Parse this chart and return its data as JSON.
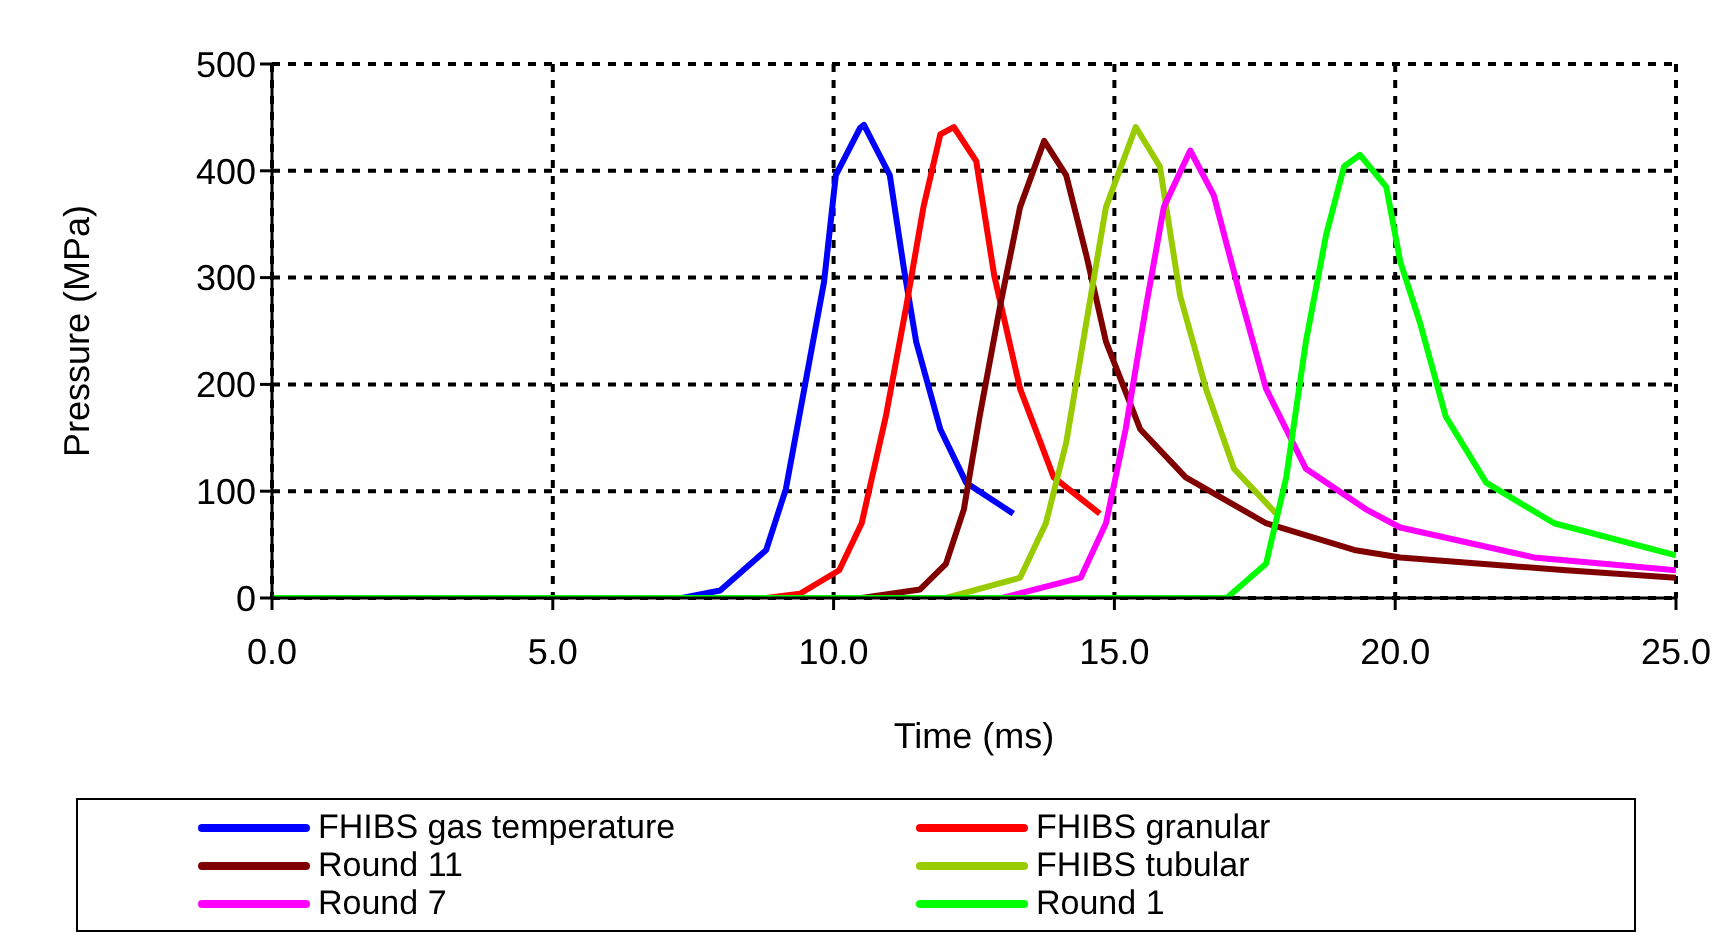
{
  "chart_data": {
    "type": "line",
    "xlabel": "Time (ms)",
    "ylabel": "Pressure (MPa)",
    "xlim": [
      0,
      25
    ],
    "xticks": [
      {
        "value": 0,
        "label": "0.0"
      },
      {
        "value": 5,
        "label": "5.0"
      },
      {
        "value": 10,
        "label": "10.0"
      },
      {
        "value": 15,
        "label": "15.0"
      },
      {
        "value": 20,
        "label": "20.0"
      },
      {
        "value": 25,
        "label": "25.0"
      }
    ],
    "ylim": [
      0,
      500
    ],
    "yticks": [
      0,
      100,
      200,
      300,
      400,
      500
    ],
    "grid": true,
    "legend": "bottom",
    "marker": "none",
    "line_style": "solid",
    "series": [
      {
        "name": "FHIBS gas temperature",
        "color": "#0000ff",
        "x": [
          7.3,
          7.98,
          8.8,
          9.15,
          9.5,
          9.83,
          10.04,
          10.47,
          10.54,
          11.0,
          11.25,
          11.47,
          11.9,
          12.36,
          13.2
        ],
        "values": [
          0,
          7,
          45,
          102,
          202,
          296,
          396,
          440,
          443,
          396,
          309,
          240,
          158,
          108,
          79
        ]
      },
      {
        "name": "FHIBS granular",
        "color": "#ff0000",
        "x": [
          8.8,
          9.4,
          10.1,
          10.5,
          10.93,
          11.29,
          11.6,
          11.9,
          12.14,
          12.54,
          12.86,
          13.32,
          13.92,
          14.74
        ],
        "values": [
          0,
          4,
          26,
          70,
          170,
          272,
          366,
          434,
          441,
          409,
          302,
          196,
          113,
          79
        ]
      },
      {
        "name": "Round 11",
        "color": "#800000",
        "x": [
          10.5,
          11.54,
          12.0,
          12.32,
          12.6,
          12.96,
          13.32,
          13.75,
          14.14,
          14.5,
          14.85,
          15.46,
          16.27,
          17.7,
          19.27,
          20.09,
          23.04,
          25
        ],
        "values": [
          0,
          8,
          32,
          83,
          170,
          272,
          366,
          428,
          396,
          321,
          240,
          158,
          113,
          70,
          45,
          38,
          26,
          19
        ]
      },
      {
        "name": "FHIBS tubular",
        "color": "#99cc00",
        "x": [
          12.0,
          13.32,
          13.78,
          14.14,
          14.5,
          14.85,
          15.38,
          15.81,
          16.17,
          16.63,
          17.13,
          17.88
        ],
        "values": [
          0,
          19,
          70,
          145,
          258,
          366,
          441,
          404,
          283,
          196,
          121,
          79
        ]
      },
      {
        "name": "Round 7",
        "color": "#ff00ff",
        "x": [
          13.0,
          14.4,
          14.85,
          15.2,
          15.56,
          15.88,
          16.35,
          16.77,
          17.24,
          17.7,
          18.41,
          19.48,
          20.09,
          22.47,
          25
        ],
        "values": [
          0,
          19,
          70,
          158,
          272,
          366,
          419,
          377,
          283,
          196,
          121,
          83,
          66,
          38,
          26
        ]
      },
      {
        "name": "Round 1",
        "color": "#00ff00",
        "x": [
          0,
          17.0,
          17.7,
          18.06,
          18.41,
          18.77,
          19.09,
          19.37,
          19.84,
          20.09,
          20.44,
          20.9,
          21.62,
          22.83,
          25
        ],
        "values": [
          0,
          0,
          32,
          113,
          240,
          340,
          404,
          415,
          385,
          315,
          258,
          170,
          108,
          70,
          40
        ]
      }
    ]
  }
}
